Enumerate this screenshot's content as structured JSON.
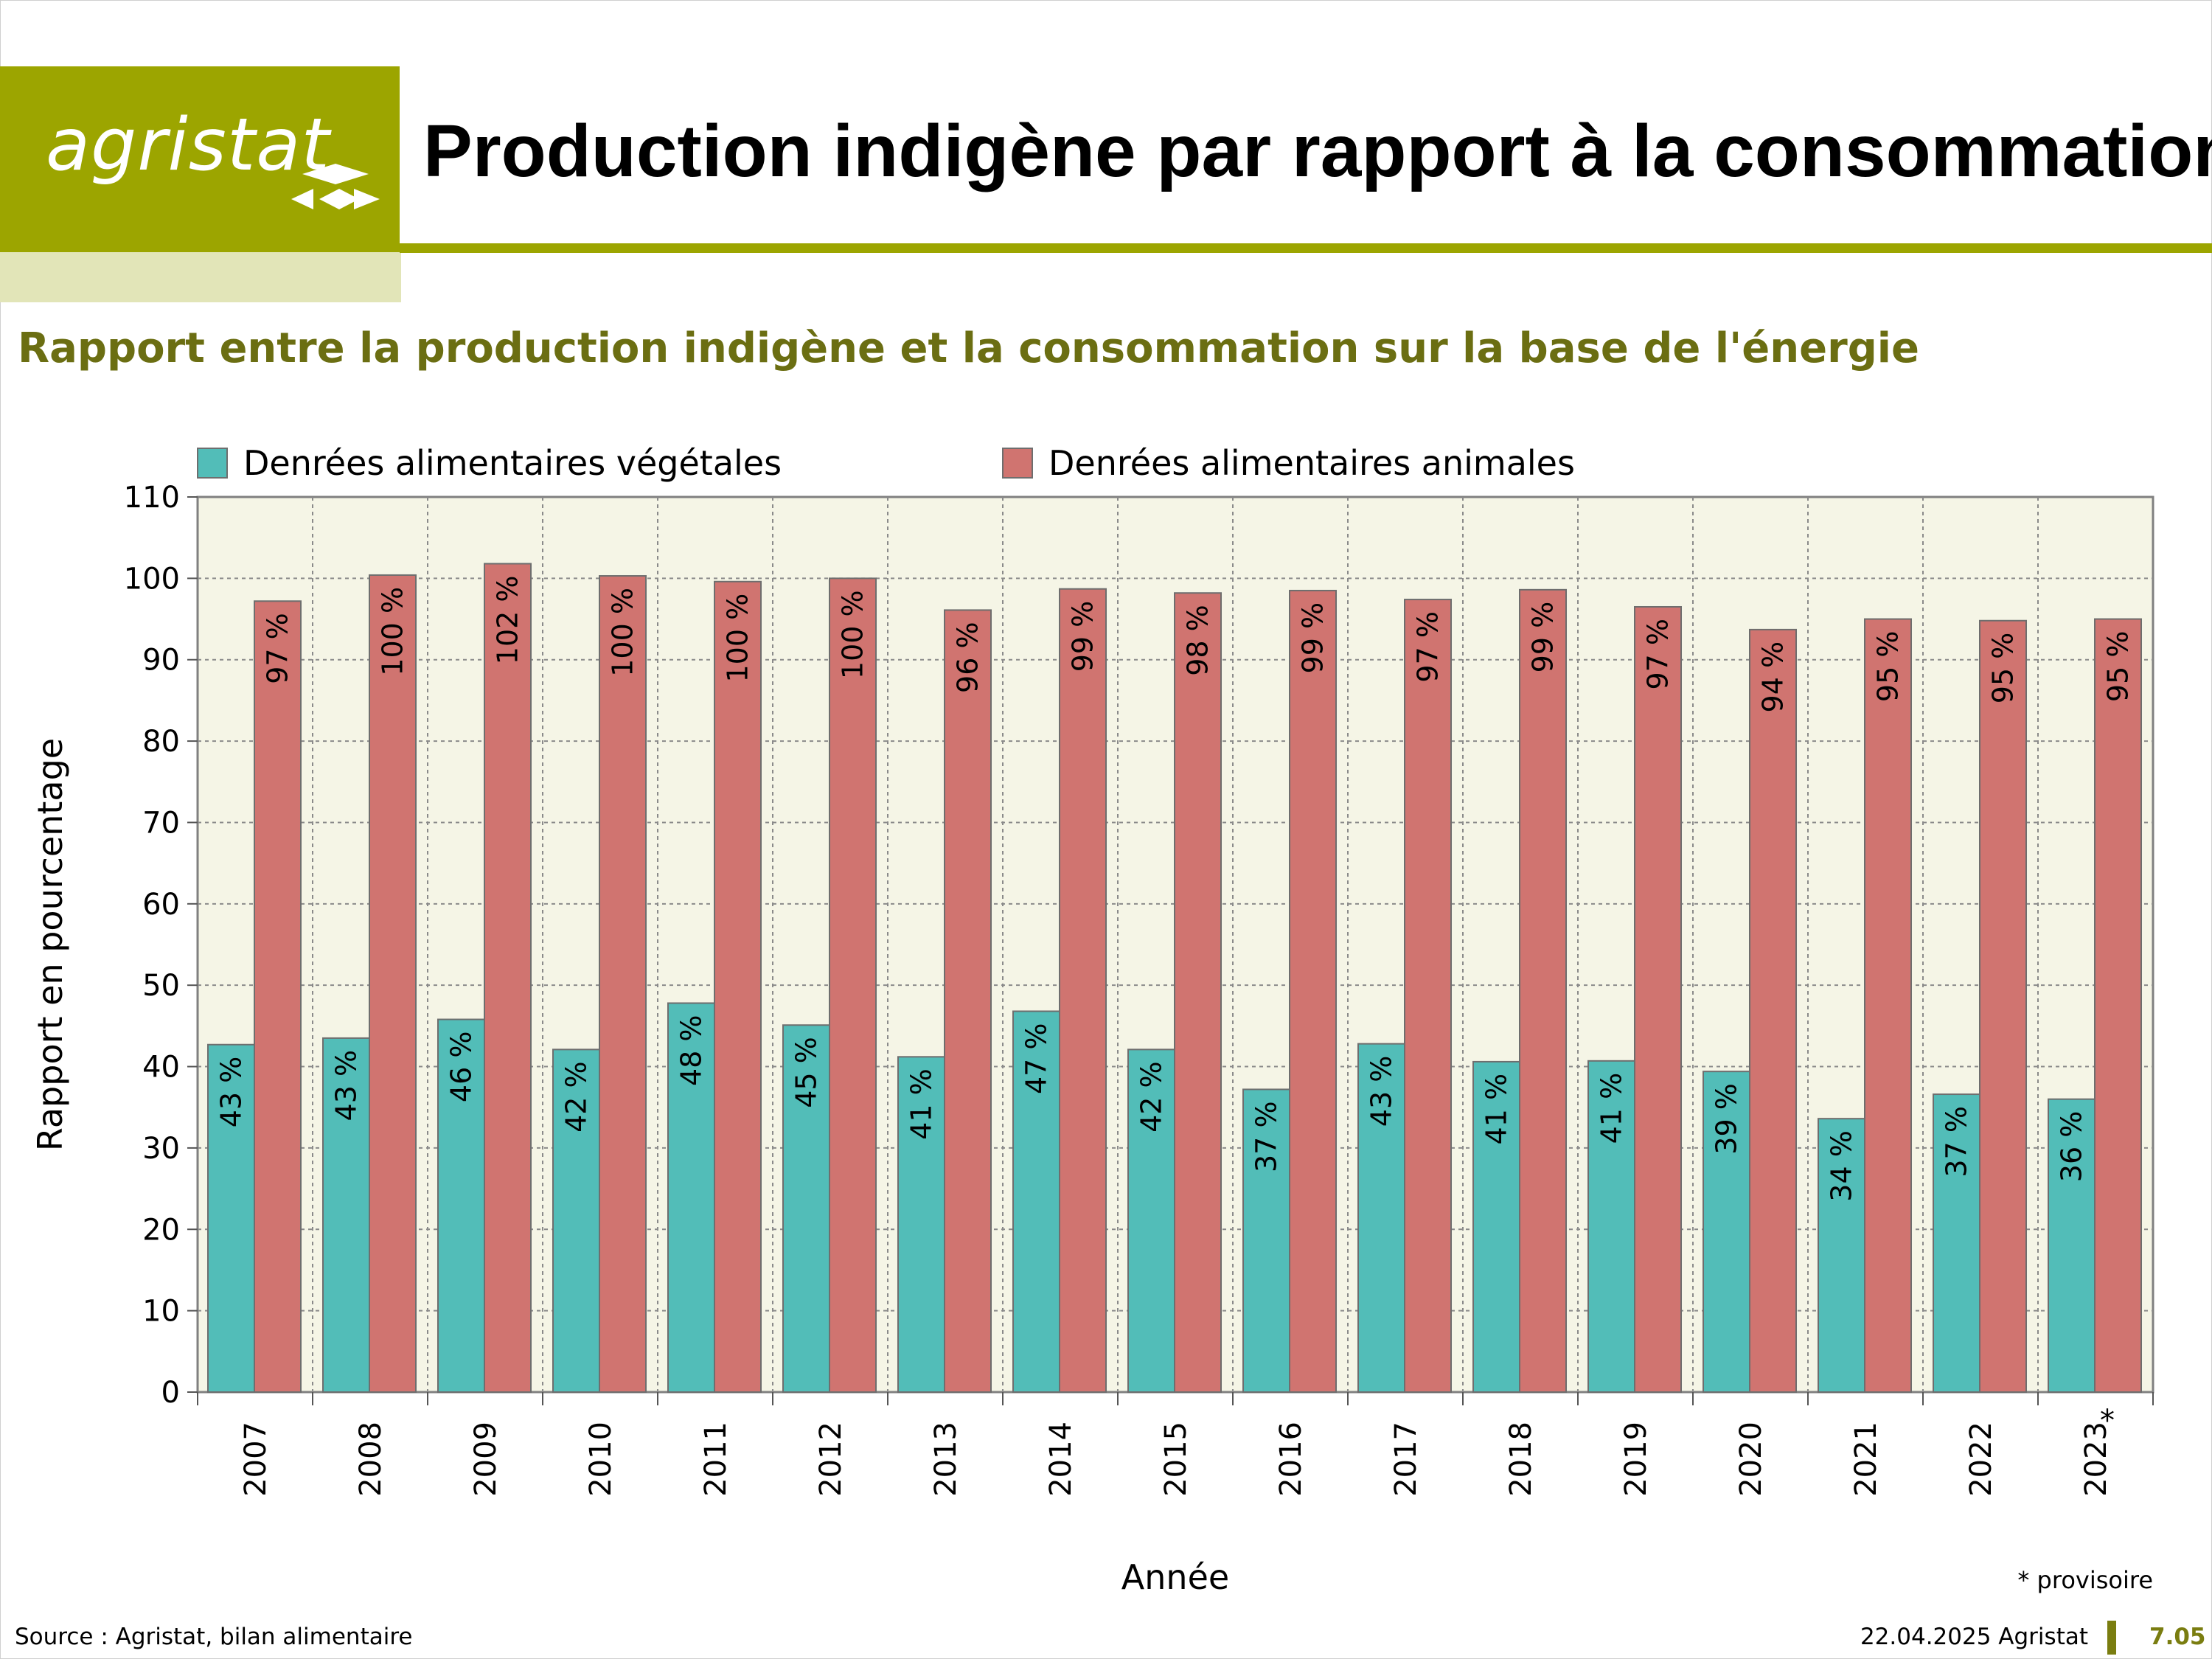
{
  "header": {
    "logo_text": "agristat",
    "title": "Production indigène par rapport à la consommation"
  },
  "subtitle": "Rapport entre la production indigène et la consommation sur la base de l'énergie",
  "footer": {
    "source": "Source : Agristat, bilan alimentaire",
    "date": "22.04.2025 Agristat",
    "page": "7.05",
    "footnote": "* provisoire"
  },
  "colors": {
    "brand": "#9ca500",
    "vegetal": "#52bdb8",
    "animal": "#d07470",
    "plot_bg": "#f5f5e6"
  },
  "chart_data": {
    "type": "bar",
    "xlabel": "Année",
    "ylabel": "Rapport en pourcentage",
    "ylim": [
      0,
      110
    ],
    "yticks": [
      0,
      10,
      20,
      30,
      40,
      50,
      60,
      70,
      80,
      90,
      100,
      110
    ],
    "grid": true,
    "legend_position": "top",
    "categories": [
      "2007",
      "2008",
      "2009",
      "2010",
      "2011",
      "2012",
      "2013",
      "2014",
      "2015",
      "2016",
      "2017",
      "2018",
      "2019",
      "2020",
      "2021",
      "2022",
      "2023"
    ],
    "category_marks": [
      "",
      "",
      "",
      "",
      "",
      "",
      "",
      "",
      "",
      "",
      "",
      "",
      "",
      "",
      "",
      "",
      "*"
    ],
    "series": [
      {
        "name": "Denrées alimentaires végétales",
        "color": "#52bdb8",
        "values": [
          42.7,
          43.5,
          45.8,
          42.1,
          47.8,
          45.1,
          41.2,
          46.8,
          42.1,
          37.2,
          42.8,
          40.6,
          40.7,
          39.4,
          33.6,
          36.6,
          36.0
        ],
        "labels": [
          "43 %",
          "43 %",
          "46 %",
          "42 %",
          "48 %",
          "45 %",
          "41 %",
          "47 %",
          "42 %",
          "37 %",
          "43 %",
          "41 %",
          "41 %",
          "39 %",
          "34 %",
          "37 %",
          "36 %"
        ]
      },
      {
        "name": "Denrées alimentaires animales",
        "color": "#d07470",
        "values": [
          97.2,
          100.4,
          101.8,
          100.3,
          99.6,
          100.0,
          96.1,
          98.7,
          98.2,
          98.5,
          97.4,
          98.6,
          96.5,
          93.7,
          95.0,
          94.8,
          95.0
        ],
        "labels": [
          "97 %",
          "100 %",
          "102 %",
          "100 %",
          "100 %",
          "100 %",
          "96 %",
          "99 %",
          "98 %",
          "99 %",
          "97 %",
          "99 %",
          "97 %",
          "94 %",
          "95 %",
          "95 %",
          "95 %"
        ]
      }
    ]
  }
}
